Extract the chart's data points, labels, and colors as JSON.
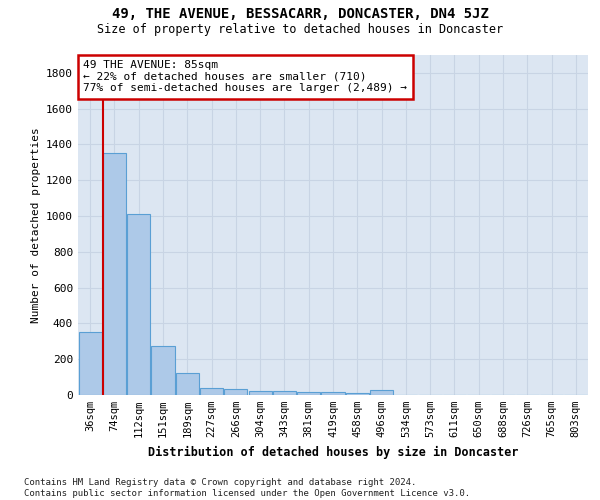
{
  "title": "49, THE AVENUE, BESSACARR, DONCASTER, DN4 5JZ",
  "subtitle": "Size of property relative to detached houses in Doncaster",
  "xlabel": "Distribution of detached houses by size in Doncaster",
  "ylabel": "Number of detached properties",
  "footnote": "Contains HM Land Registry data © Crown copyright and database right 2024.\nContains public sector information licensed under the Open Government Licence v3.0.",
  "categories": [
    "36sqm",
    "74sqm",
    "112sqm",
    "151sqm",
    "189sqm",
    "227sqm",
    "266sqm",
    "304sqm",
    "343sqm",
    "381sqm",
    "419sqm",
    "458sqm",
    "496sqm",
    "534sqm",
    "573sqm",
    "611sqm",
    "650sqm",
    "688sqm",
    "726sqm",
    "765sqm",
    "803sqm"
  ],
  "values": [
    350,
    1350,
    1010,
    275,
    125,
    40,
    35,
    25,
    20,
    15,
    15,
    10,
    30,
    0,
    0,
    0,
    0,
    0,
    0,
    0,
    0
  ],
  "bar_color": "#adc9e8",
  "bar_edge_color": "#5a9fd4",
  "grid_color": "#c8d4e4",
  "background_color": "#dce6f2",
  "property_line_x": 0.52,
  "annotation_line1": "49 THE AVENUE: 85sqm",
  "annotation_line2": "← 22% of detached houses are smaller (710)",
  "annotation_line3": "77% of semi-detached houses are larger (2,489) →",
  "annotation_box_color": "#ffffff",
  "annotation_box_edge": "#cc0000",
  "ylim": [
    0,
    1900
  ],
  "yticks": [
    0,
    200,
    400,
    600,
    800,
    1000,
    1200,
    1400,
    1600,
    1800
  ]
}
